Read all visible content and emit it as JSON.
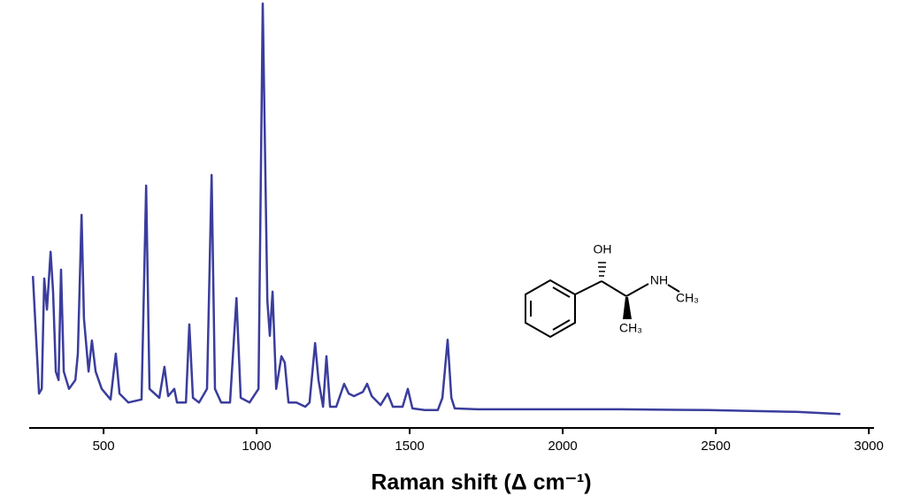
{
  "chart_data": {
    "type": "line",
    "xlabel": "Raman shift (Δ cm⁻¹)",
    "xlim": [
      257,
      3017
    ],
    "ylim": [
      0,
      100
    ],
    "xticks": [
      500,
      1000,
      1500,
      2000,
      2500,
      3000
    ],
    "color": "#3a3d9c",
    "x": [
      269,
      289,
      298,
      306,
      315,
      327,
      335,
      344,
      353,
      361,
      370,
      387,
      408,
      416,
      428,
      436,
      451,
      462,
      474,
      494,
      523,
      540,
      552,
      581,
      624,
      639,
      650,
      682,
      699,
      711,
      731,
      740,
      769,
      780,
      792,
      812,
      838,
      853,
      864,
      884,
      913,
      934,
      948,
      977,
      1006,
      1020,
      1035,
      1043,
      1052,
      1064,
      1081,
      1092,
      1104,
      1130,
      1159,
      1173,
      1191,
      1202,
      1217,
      1228,
      1240,
      1260,
      1286,
      1301,
      1318,
      1347,
      1361,
      1376,
      1405,
      1428,
      1445,
      1477,
      1494,
      1509,
      1549,
      1592,
      1607,
      1624,
      1636,
      1647,
      1722,
      1838,
      2185,
      2474,
      2763,
      2907
    ],
    "values": [
      35.8,
      8.1,
      9.2,
      35.2,
      27.9,
      41.5,
      32.1,
      13.3,
      11.3,
      37.3,
      13.3,
      9.2,
      11.3,
      17.5,
      50.2,
      25.8,
      13.3,
      20.6,
      13.3,
      9.2,
      6.7,
      17.5,
      8.1,
      6.0,
      6.7,
      57.1,
      9.2,
      7.1,
      14.4,
      7.5,
      9.2,
      6.0,
      6.0,
      24.4,
      7.1,
      6.0,
      9.2,
      59.6,
      9.2,
      6.0,
      6.0,
      30.6,
      7.1,
      6.0,
      9.2,
      100,
      30.0,
      21.7,
      32.1,
      9.2,
      16.9,
      15.4,
      6.0,
      6.0,
      5.0,
      6.0,
      20.0,
      11.3,
      5.0,
      16.9,
      5.0,
      5.0,
      10.4,
      8.1,
      7.5,
      8.5,
      10.4,
      7.5,
      5.4,
      8.1,
      5.0,
      5.0,
      9.2,
      4.6,
      4.2,
      4.2,
      7.1,
      20.8,
      7.1,
      4.6,
      4.4,
      4.4,
      4.4,
      4.2,
      3.8,
      3.3
    ],
    "annotations": [
      "OH",
      "NH",
      "CH₃",
      "CH₃"
    ]
  }
}
